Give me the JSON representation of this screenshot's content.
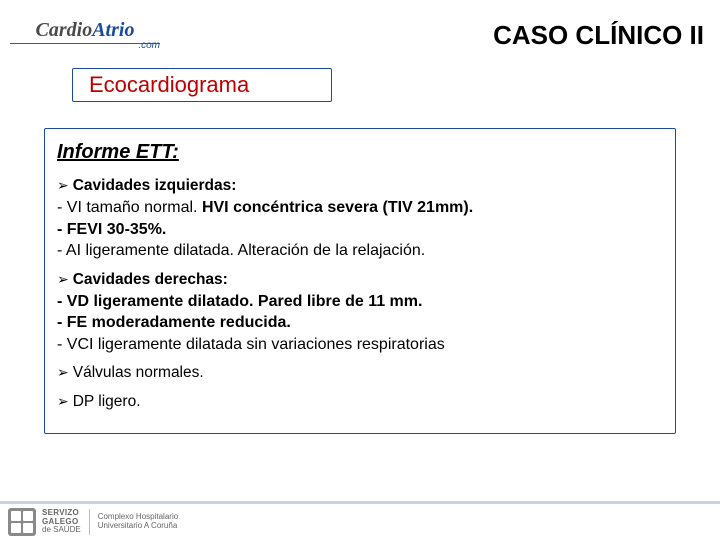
{
  "header": {
    "logo_cardio": "Cardio",
    "logo_atrio": "Atrio",
    "logo_com": ".com",
    "case_title": "CASO CLÍNICO II"
  },
  "section_label": "Ecocardiograma",
  "report": {
    "title": "Informe ETT:",
    "groups": [
      {
        "heading": "Cavidades izquierdas:",
        "heading_bold": true,
        "lines": [
          {
            "html": "- VI tamaño normal. <b>HVI concéntrica severa (TIV 21mm).</b>"
          },
          {
            "html": "<b>- FEVI 30-35%.</b>"
          },
          {
            "html": "- AI ligeramente dilatada. Alteración de la relajación."
          }
        ]
      },
      {
        "heading": "Cavidades derechas:",
        "heading_bold": true,
        "lines": [
          {
            "html": "<b>- VD ligeramente dilatado. Pared libre de 11 mm.</b>"
          },
          {
            "html": "<b>- FE moderadamente reducida.</b>"
          },
          {
            "html": "- VCI ligeramente dilatada sin variaciones respiratorias"
          }
        ]
      },
      {
        "heading": "Válvulas normales.",
        "heading_bold": false,
        "lines": []
      },
      {
        "heading": "DP ligero.",
        "heading_bold": false,
        "lines": []
      }
    ]
  },
  "footer": {
    "org1_line1": "SERVIZO",
    "org1_line2": "GALEGO",
    "org1_line3": "de SAÚDE",
    "org2_line1": "Complexo Hospitalario",
    "org2_line2": "Universitario A Coruña"
  },
  "colors": {
    "brand_blue": "#1a4a9c",
    "red": "#c00000",
    "footer_rule": "#9aa6c9",
    "text": "#000000"
  }
}
